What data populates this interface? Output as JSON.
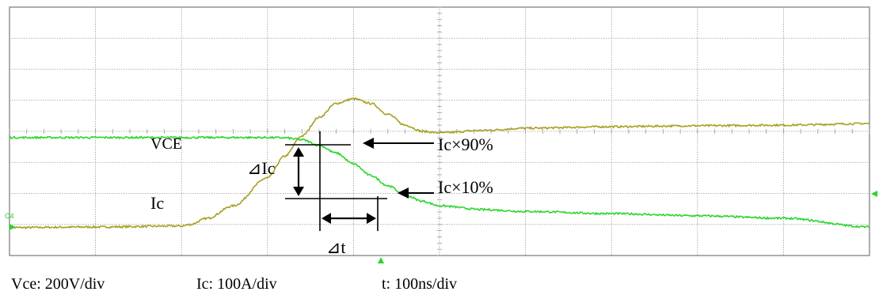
{
  "chart_data": {
    "type": "line",
    "title": "",
    "xlabel": "",
    "ylabel": "",
    "grid": true,
    "divisions": {
      "x": 10,
      "y": 8
    },
    "xlim": [
      0,
      10
    ],
    "ylim": [
      0,
      8
    ],
    "colors": {
      "vce": "#2bd52b",
      "ic": "#a8a020",
      "grid": "#9a9a9a"
    },
    "series": [
      {
        "name": "VCE",
        "color": "#2bd52b",
        "x": [
          0,
          1,
          2,
          3,
          3.2,
          3.4,
          3.6,
          3.8,
          4.0,
          4.2,
          4.4,
          4.6,
          4.8,
          5.0,
          5.5,
          6,
          7,
          8,
          9,
          10
        ],
        "y": [
          3.8,
          3.8,
          3.8,
          3.8,
          3.79,
          3.73,
          3.55,
          3.3,
          2.95,
          2.58,
          2.25,
          1.95,
          1.75,
          1.6,
          1.48,
          1.42,
          1.35,
          1.28,
          1.2,
          0.92
        ]
      },
      {
        "name": "Ic",
        "color": "#a8a020",
        "x": [
          0,
          1,
          2,
          2.1,
          2.3,
          2.6,
          3.0,
          3.2,
          3.4,
          3.6,
          3.8,
          4.0,
          4.2,
          4.4,
          4.6,
          4.8,
          5.0,
          5.5,
          6,
          7,
          8,
          9,
          10
        ],
        "y": [
          0.9,
          0.92,
          0.95,
          1.0,
          1.2,
          1.6,
          2.5,
          3.2,
          3.85,
          4.45,
          4.9,
          5.05,
          4.9,
          4.55,
          4.2,
          4.0,
          3.95,
          4.03,
          4.1,
          4.15,
          4.18,
          4.2,
          4.25
        ]
      }
    ],
    "annotations": {
      "vce_label": "VCE",
      "ic_label": "Ic",
      "delta_ic": "⊿Ic",
      "delta_t": "⊿t",
      "ic90": "Ic×90%",
      "ic10": "Ic×10%",
      "channel": "C4"
    },
    "scales": {
      "vce": "Vce: 200V/div",
      "ic": "Ic: 100A/div",
      "t": "t: 100ns/div"
    }
  }
}
